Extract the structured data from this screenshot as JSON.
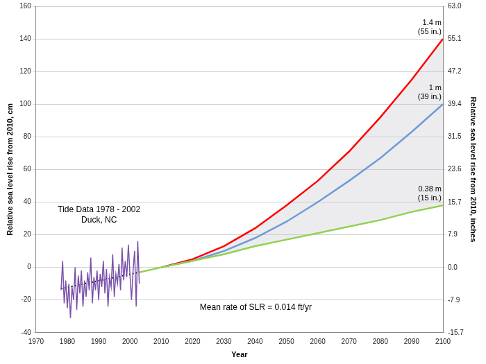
{
  "chart_data": {
    "type": "line",
    "x_label": "Year",
    "y_label": "Relative sea level rise from 2010, cm",
    "y2_label": "Relative sea level rise from 2010, inches",
    "xlim": [
      1970,
      2100
    ],
    "xticks": [
      1970,
      1980,
      1990,
      2000,
      2010,
      2020,
      2030,
      2040,
      2050,
      2060,
      2070,
      2080,
      2090,
      2100
    ],
    "ylim": [
      -40,
      160
    ],
    "yticks": [
      -40,
      -20,
      0,
      20,
      40,
      60,
      80,
      100,
      120,
      140,
      160
    ],
    "y2lim": [
      -15.7,
      63
    ],
    "y2ticks": [
      -15.7,
      -7.9,
      {
        "value": 0,
        "label": "0.0"
      },
      7.9,
      15.7,
      23.6,
      31.5,
      39.4,
      47.2,
      55.1,
      {
        "value": 63,
        "label": "63.0"
      }
    ],
    "grid": true,
    "series": [
      {
        "color": "#7b52ab",
        "line_style": "solid",
        "x": [
          1978,
          1978.5,
          1979,
          1979.5,
          1980,
          1980.5,
          1981,
          1981.5,
          1982,
          1982.5,
          1983,
          1983.5,
          1984,
          1984.5,
          1985,
          1985.5,
          1986,
          1986.5,
          1987,
          1987.5,
          1988,
          1988.5,
          1989,
          1989.5,
          1990,
          1990.5,
          1991,
          1991.5,
          1992,
          1992.5,
          1993,
          1993.5,
          1994,
          1994.5,
          1995,
          1995.5,
          1996,
          1996.5,
          1997,
          1997.5,
          1998,
          1998.5,
          1999,
          1999.5,
          2000,
          2000.5,
          2001,
          2001.5,
          2002,
          2002.5,
          2003
        ],
        "values": [
          -14,
          4,
          -22,
          -8,
          -25,
          -10,
          -31,
          -12,
          -20,
          0,
          -26,
          -5,
          -16,
          -2,
          -24,
          -8,
          -18,
          -3,
          -14,
          6,
          -22,
          -6,
          -14,
          -2,
          -20,
          -4,
          -12,
          4,
          -16,
          -1,
          -24,
          -6,
          -12,
          8,
          -18,
          -4,
          -10,
          2,
          -14,
          12,
          -8,
          4,
          -6,
          14,
          -4,
          -20,
          -2,
          10,
          -24,
          16,
          -10
        ]
      },
      {
        "color": "#000000",
        "line_style": "dotted",
        "x": [
          1978,
          2003
        ],
        "values": [
          -13,
          -3
        ]
      },
      {
        "color": "#92d050",
        "line_style": "solid",
        "label": [
          "0.38 m",
          "(15 in.)"
        ],
        "x": [
          2003,
          2010,
          2020,
          2030,
          2040,
          2050,
          2060,
          2070,
          2080,
          2090,
          2100
        ],
        "values": [
          -3,
          0,
          4,
          8,
          13,
          17,
          21,
          25,
          29,
          34,
          38
        ]
      },
      {
        "color": "#6f9bd8",
        "line_style": "solid",
        "label": [
          "1 m",
          "(39 in.)"
        ],
        "x": [
          2010,
          2020,
          2030,
          2040,
          2050,
          2060,
          2070,
          2080,
          2090,
          2100
        ],
        "values": [
          0,
          4,
          10,
          18,
          28,
          40,
          53,
          67,
          83,
          100
        ]
      },
      {
        "color": "#ff0000",
        "line_style": "solid",
        "label": [
          "1.4 m",
          "(55 in.)"
        ],
        "x": [
          2010,
          2020,
          2030,
          2040,
          2050,
          2060,
          2070,
          2080,
          2090,
          2100
        ],
        "values": [
          0,
          5,
          13,
          24,
          38,
          53,
          71,
          92,
          115,
          140
        ]
      }
    ],
    "annotations": [
      {
        "text": [
          "Tide Data 1978 - 2002",
          "Duck, NC"
        ]
      },
      {
        "text": [
          "Mean rate of SLR = 0.014 ft/yr"
        ]
      }
    ]
  }
}
